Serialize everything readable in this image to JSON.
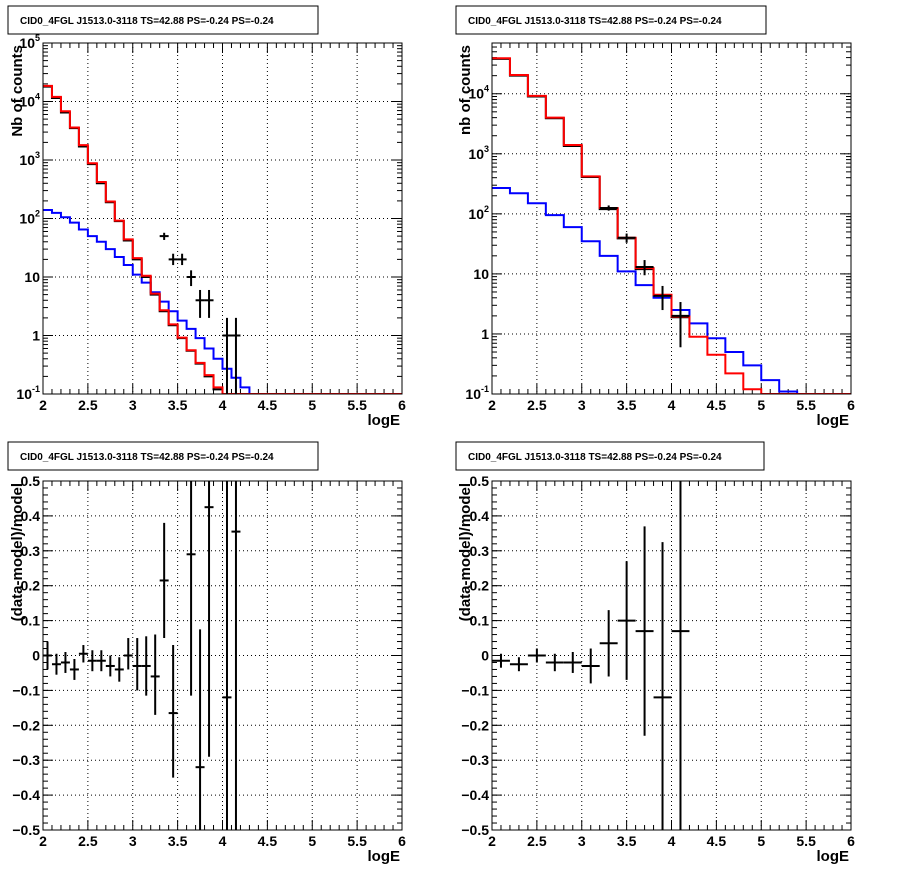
{
  "chart_data": [
    {
      "id": "top-left",
      "type": "line",
      "title": "CID0_4FGL J1513.0-3118 TS=42.88 PS=-0.24 PS=-0.24",
      "xlabel": "logE",
      "ylabel": "Nb of counts",
      "xlim": [
        2,
        6
      ],
      "ylim": [
        0.1,
        100000
      ],
      "yscale": "log",
      "grid": true,
      "xticks": [
        "2",
        "2.5",
        "3",
        "3.5",
        "4",
        "4.5",
        "5",
        "5.5",
        "6"
      ],
      "yticks": [
        {
          "v": 0.1,
          "base": "10",
          "exp": "-1"
        },
        {
          "v": 1,
          "base": "1",
          "exp": ""
        },
        {
          "v": 10,
          "base": "10",
          "exp": ""
        },
        {
          "v": 100,
          "base": "10",
          "exp": "2"
        },
        {
          "v": 1000,
          "base": "10",
          "exp": "3"
        },
        {
          "v": 10000,
          "base": "10",
          "exp": "4"
        },
        {
          "v": 100000,
          "base": "10",
          "exp": "5"
        }
      ],
      "step_series": [
        {
          "color": "#0000ff",
          "edges_start": 2.0,
          "bin_width": 0.1,
          "values": [
            140,
            125,
            105,
            85,
            65,
            50,
            40,
            30,
            22,
            16,
            11,
            8,
            5.5,
            3.8,
            2.6,
            1.8,
            1.3,
            0.9,
            0.6,
            0.4,
            0.27,
            0.19,
            0.13,
            0.1,
            0.1,
            0.1,
            0.1,
            0.1,
            0.1,
            0.1,
            0.1,
            0.1,
            0.1,
            0.1,
            0.1,
            0.1,
            0.1,
            0.1,
            0.1,
            0.1
          ]
        },
        {
          "color": "#000000",
          "edges_start": 2.0,
          "bin_width": 0.1,
          "values": [
            18000,
            11500,
            6500,
            3500,
            1700,
            850,
            400,
            190,
            90,
            42,
            20,
            10,
            5,
            2.6,
            1.5,
            0.9,
            0.55,
            0.33,
            0.2,
            0.12,
            0.1
          ]
        },
        {
          "color": "#ff0000",
          "edges_start": 2.0,
          "bin_width": 0.1,
          "values": [
            18500,
            12000,
            6800,
            3600,
            1800,
            880,
            420,
            195,
            92,
            44,
            21,
            10.5,
            5.2,
            2.7,
            1.55,
            0.92,
            0.56,
            0.34,
            0.21,
            0.13,
            0.1,
            0.1,
            0.1,
            0.1,
            0.1,
            0.1,
            0.1,
            0.1,
            0.1,
            0.1,
            0.1,
            0.1,
            0.1,
            0.1,
            0.1,
            0.1,
            0.1,
            0.1,
            0.1,
            0.1
          ]
        }
      ],
      "points": [
        {
          "x": 3.35,
          "y": 50,
          "xerr": 0.05,
          "ylo": 43,
          "yhi": 57
        },
        {
          "x": 3.45,
          "y": 20,
          "xerr": 0.05,
          "ylo": 16,
          "yhi": 25
        },
        {
          "x": 3.55,
          "y": 20,
          "xerr": 0.05,
          "ylo": 16,
          "yhi": 25
        },
        {
          "x": 3.65,
          "y": 10,
          "xerr": 0.05,
          "ylo": 7,
          "yhi": 13
        },
        {
          "x": 3.75,
          "y": 4,
          "xerr": 0.05,
          "ylo": 2,
          "yhi": 6
        },
        {
          "x": 3.85,
          "y": 4,
          "xerr": 0.05,
          "ylo": 2,
          "yhi": 6
        },
        {
          "x": 4.05,
          "y": 1,
          "xerr": 0.05,
          "ylo": 0.1,
          "yhi": 2
        },
        {
          "x": 4.15,
          "y": 1,
          "xerr": 0.05,
          "ylo": 0.1,
          "yhi": 2
        }
      ]
    },
    {
      "id": "top-right",
      "type": "line",
      "title": "CID0_4FGL J1513.0-3118 TS=42.88 PS=-0.24 PS=-0.24",
      "xlabel": "logE",
      "ylabel": "nb of counts",
      "xlim": [
        2,
        6
      ],
      "ylim": [
        0.1,
        70000
      ],
      "yscale": "log",
      "grid": true,
      "xticks": [
        "2",
        "2.5",
        "3",
        "3.5",
        "4",
        "4.5",
        "5",
        "5.5",
        "6"
      ],
      "yticks": [
        {
          "v": 0.1,
          "base": "10",
          "exp": "-1"
        },
        {
          "v": 1,
          "base": "1",
          "exp": ""
        },
        {
          "v": 10,
          "base": "10",
          "exp": ""
        },
        {
          "v": 100,
          "base": "10",
          "exp": "2"
        },
        {
          "v": 1000,
          "base": "10",
          "exp": "3"
        },
        {
          "v": 10000,
          "base": "10",
          "exp": "4"
        }
      ],
      "step_series": [
        {
          "color": "#0000ff",
          "edges_start": 2.0,
          "bin_width": 0.2,
          "values": [
            270,
            220,
            150,
            95,
            60,
            35,
            20,
            11,
            6.5,
            4,
            2.5,
            1.5,
            0.85,
            0.5,
            0.3,
            0.17,
            0.11,
            0.1,
            0.1,
            0.1
          ]
        },
        {
          "color": "#000000",
          "edges_start": 2.0,
          "bin_width": 0.2,
          "values": [
            38000,
            20000,
            9000,
            3900,
            1350,
            410,
            120,
            39,
            12,
            4.4,
            1.9
          ]
        },
        {
          "color": "#ff0000",
          "edges_start": 2.0,
          "bin_width": 0.2,
          "values": [
            39000,
            20500,
            9200,
            4000,
            1400,
            420,
            125,
            40,
            12.5,
            4.5,
            1.95,
            0.9,
            0.45,
            0.22,
            0.12,
            0.1,
            0.1,
            0.1,
            0.1,
            0.1
          ]
        }
      ],
      "points": [
        {
          "x": 3.3,
          "y": 125,
          "xerr": 0.1,
          "ylo": 113,
          "yhi": 138
        },
        {
          "x": 3.5,
          "y": 40,
          "xerr": 0.1,
          "ylo": 33,
          "yhi": 47
        },
        {
          "x": 3.7,
          "y": 13,
          "xerr": 0.1,
          "ylo": 9.5,
          "yhi": 17
        },
        {
          "x": 3.9,
          "y": 4.3,
          "xerr": 0.1,
          "ylo": 2.5,
          "yhi": 6.3
        },
        {
          "x": 4.1,
          "y": 2,
          "xerr": 0.1,
          "ylo": 0.6,
          "yhi": 3.4
        }
      ]
    },
    {
      "id": "bottom-left",
      "type": "scatter",
      "title": "CID0_4FGL J1513.0-3118 TS=42.88 PS=-0.24 PS=-0.24",
      "xlabel": "logE",
      "ylabel": "(data-model)/model",
      "xlim": [
        2,
        6
      ],
      "ylim": [
        -0.5,
        0.5
      ],
      "yscale": "linear",
      "grid": true,
      "xticks": [
        "2",
        "2.5",
        "3",
        "3.5",
        "4",
        "4.5",
        "5",
        "5.5",
        "6"
      ],
      "yticks": [
        {
          "v": -0.5,
          "base": "−0.5",
          "exp": ""
        },
        {
          "v": -0.4,
          "base": "−0.4",
          "exp": ""
        },
        {
          "v": -0.3,
          "base": "−0.3",
          "exp": ""
        },
        {
          "v": -0.2,
          "base": "−0.2",
          "exp": ""
        },
        {
          "v": -0.1,
          "base": "−0.1",
          "exp": ""
        },
        {
          "v": 0,
          "base": "0",
          "exp": ""
        },
        {
          "v": 0.1,
          "base": "0.1",
          "exp": ""
        },
        {
          "v": 0.2,
          "base": "0.2",
          "exp": ""
        },
        {
          "v": 0.3,
          "base": "0.3",
          "exp": ""
        },
        {
          "v": 0.4,
          "base": "0.4",
          "exp": ""
        },
        {
          "v": 0.5,
          "base": "0.5",
          "exp": ""
        }
      ],
      "points": [
        {
          "x": 2.05,
          "y": 0.0,
          "xerr": 0.05,
          "ylo": -0.04,
          "yhi": 0.04
        },
        {
          "x": 2.15,
          "y": -0.025,
          "xerr": 0.05,
          "ylo": -0.055,
          "yhi": 0.005
        },
        {
          "x": 2.25,
          "y": -0.02,
          "xerr": 0.05,
          "ylo": -0.05,
          "yhi": 0.01
        },
        {
          "x": 2.35,
          "y": -0.04,
          "xerr": 0.05,
          "ylo": -0.07,
          "yhi": -0.01
        },
        {
          "x": 2.45,
          "y": 0.005,
          "xerr": 0.05,
          "ylo": -0.02,
          "yhi": 0.03
        },
        {
          "x": 2.55,
          "y": -0.015,
          "xerr": 0.05,
          "ylo": -0.045,
          "yhi": 0.015
        },
        {
          "x": 2.65,
          "y": -0.015,
          "xerr": 0.05,
          "ylo": -0.045,
          "yhi": 0.015
        },
        {
          "x": 2.75,
          "y": -0.03,
          "xerr": 0.05,
          "ylo": -0.06,
          "yhi": 0.0
        },
        {
          "x": 2.85,
          "y": -0.04,
          "xerr": 0.05,
          "ylo": -0.075,
          "yhi": -0.005
        },
        {
          "x": 2.95,
          "y": 0.0,
          "xerr": 0.05,
          "ylo": -0.04,
          "yhi": 0.05
        },
        {
          "x": 3.05,
          "y": -0.03,
          "xerr": 0.05,
          "ylo": -0.1,
          "yhi": 0.05
        },
        {
          "x": 3.15,
          "y": -0.03,
          "xerr": 0.05,
          "ylo": -0.115,
          "yhi": 0.055
        },
        {
          "x": 3.25,
          "y": -0.06,
          "xerr": 0.05,
          "ylo": -0.17,
          "yhi": 0.06
        },
        {
          "x": 3.35,
          "y": 0.215,
          "xerr": 0.05,
          "ylo": 0.05,
          "yhi": 0.38
        },
        {
          "x": 3.45,
          "y": -0.165,
          "xerr": 0.05,
          "ylo": -0.35,
          "yhi": 0.03
        },
        {
          "x": 3.65,
          "y": 0.29,
          "xerr": 0.05,
          "ylo": -0.115,
          "yhi": 0.5
        },
        {
          "x": 3.75,
          "y": -0.32,
          "xerr": 0.05,
          "ylo": -0.5,
          "yhi": 0.075
        },
        {
          "x": 3.85,
          "y": 0.425,
          "xerr": 0.05,
          "ylo": -0.29,
          "yhi": 0.5
        },
        {
          "x": 4.05,
          "y": -0.12,
          "xerr": 0.05,
          "ylo": -0.5,
          "yhi": 0.5
        },
        {
          "x": 4.15,
          "y": 0.355,
          "xerr": 0.05,
          "ylo": -0.5,
          "yhi": 0.5
        }
      ]
    },
    {
      "id": "bottom-right",
      "type": "scatter",
      "title": "CID0_4FGL J1513.0-3118 TS=42.88 PS=-0.24 PS=-0.24",
      "xlabel": "logE",
      "ylabel": "(data-model)/model",
      "xlim": [
        2,
        6
      ],
      "ylim": [
        -0.5,
        0.5
      ],
      "yscale": "linear",
      "grid": true,
      "xticks": [
        "2",
        "2.5",
        "3",
        "3.5",
        "4",
        "4.5",
        "5",
        "5.5",
        "6"
      ],
      "yticks": [
        {
          "v": -0.5,
          "base": "−0.5",
          "exp": ""
        },
        {
          "v": -0.4,
          "base": "−0.4",
          "exp": ""
        },
        {
          "v": -0.3,
          "base": "−0.3",
          "exp": ""
        },
        {
          "v": -0.2,
          "base": "−0.2",
          "exp": ""
        },
        {
          "v": -0.1,
          "base": "−0.1",
          "exp": ""
        },
        {
          "v": 0,
          "base": "0",
          "exp": ""
        },
        {
          "v": 0.1,
          "base": "0.1",
          "exp": ""
        },
        {
          "v": 0.2,
          "base": "0.2",
          "exp": ""
        },
        {
          "v": 0.3,
          "base": "0.3",
          "exp": ""
        },
        {
          "v": 0.4,
          "base": "0.4",
          "exp": ""
        },
        {
          "v": 0.5,
          "base": "0.5",
          "exp": ""
        }
      ],
      "points": [
        {
          "x": 2.1,
          "y": -0.015,
          "xerr": 0.1,
          "ylo": -0.035,
          "yhi": 0.005
        },
        {
          "x": 2.3,
          "y": -0.025,
          "xerr": 0.1,
          "ylo": -0.045,
          "yhi": -0.005
        },
        {
          "x": 2.5,
          "y": 0.0,
          "xerr": 0.1,
          "ylo": -0.02,
          "yhi": 0.02
        },
        {
          "x": 2.7,
          "y": -0.02,
          "xerr": 0.1,
          "ylo": -0.045,
          "yhi": 0.005
        },
        {
          "x": 2.9,
          "y": -0.02,
          "xerr": 0.1,
          "ylo": -0.05,
          "yhi": 0.01
        },
        {
          "x": 3.1,
          "y": -0.03,
          "xerr": 0.1,
          "ylo": -0.08,
          "yhi": 0.02
        },
        {
          "x": 3.3,
          "y": 0.035,
          "xerr": 0.1,
          "ylo": -0.06,
          "yhi": 0.13
        },
        {
          "x": 3.5,
          "y": 0.1,
          "xerr": 0.1,
          "ylo": -0.07,
          "yhi": 0.27
        },
        {
          "x": 3.7,
          "y": 0.07,
          "xerr": 0.1,
          "ylo": -0.23,
          "yhi": 0.37
        },
        {
          "x": 3.9,
          "y": -0.12,
          "xerr": 0.1,
          "ylo": -0.5,
          "yhi": 0.325
        },
        {
          "x": 4.1,
          "y": 0.07,
          "xerr": 0.1,
          "ylo": -0.5,
          "yhi": 0.5
        }
      ]
    }
  ]
}
